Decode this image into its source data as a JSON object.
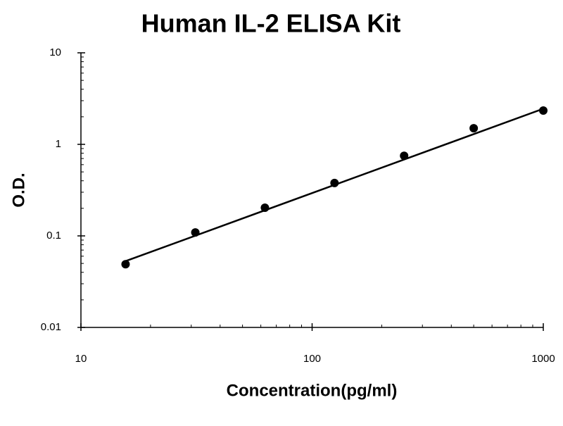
{
  "chart_data": {
    "type": "scatter",
    "title": "Human IL-2 ELISA Kit",
    "xlabel": "Concentration(pg/ml)",
    "ylabel": "O.D.",
    "x": [
      15.6,
      31.25,
      62.5,
      125,
      250,
      500,
      1000
    ],
    "series": [
      {
        "color": "#000000",
        "values": [
          0.049,
          0.109,
          0.203,
          0.378,
          0.75,
          1.5,
          2.34
        ]
      }
    ],
    "trendline": {
      "x": [
        15.6,
        1000
      ],
      "values": [
        0.053,
        2.45
      ],
      "color": "#000000"
    },
    "xscale": "log",
    "yscale": "log",
    "xlim": [
      10,
      1000
    ],
    "ylim": [
      0.01,
      10
    ],
    "xticks": [
      10,
      100,
      1000
    ],
    "yticks": [
      0.01,
      0.1,
      1,
      10
    ],
    "grid": false
  }
}
